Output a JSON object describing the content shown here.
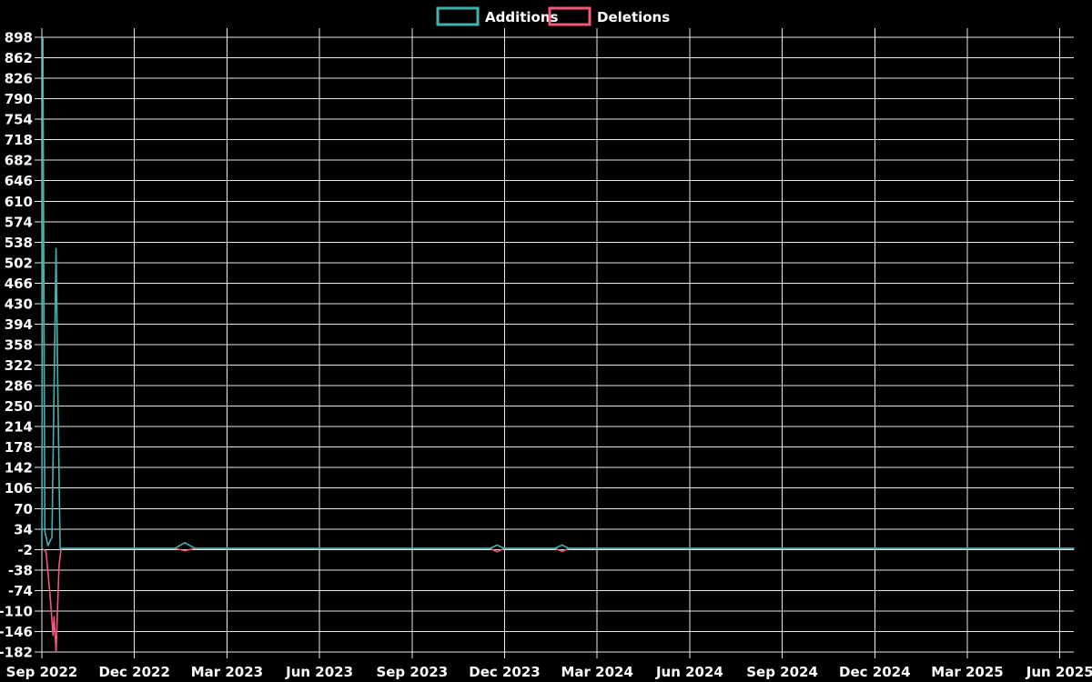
{
  "page": {
    "background_color": "#000000",
    "text_color": "#ffffff",
    "grid_color": "#e9e9e9"
  },
  "legend": {
    "additions_label": "Additions",
    "deletions_label": "Deletions"
  },
  "chart_data": {
    "type": "line",
    "title": "",
    "xlabel": "",
    "ylabel": "",
    "grid": true,
    "legend_position": "top-center",
    "background_color": "#000000",
    "grid_color": "#e9e9e9",
    "text_color": "#ffffff",
    "y_min": -182,
    "y_max": 898,
    "y_step": 36,
    "y_ticks": [
      898,
      862,
      826,
      790,
      754,
      718,
      682,
      646,
      610,
      574,
      538,
      502,
      466,
      430,
      394,
      358,
      322,
      286,
      250,
      214,
      178,
      142,
      106,
      70,
      34,
      -2,
      -38,
      -74,
      -110,
      -146,
      -182
    ],
    "x_tick_labels": [
      "Sep 2022",
      "Dec 2022",
      "Mar 2023",
      "Jun 2023",
      "Sep 2023",
      "Dec 2023",
      "Mar 2024",
      "Jun 2024",
      "Sep 2024",
      "Dec 2024",
      "Mar 2025",
      "Jun 2025"
    ],
    "x_start_date": "2022-09-01",
    "x_end_date": "2025-06-01",
    "series": [
      {
        "name": "Additions",
        "color": "#41b3af",
        "points": [
          [
            "2022-09-01",
            0
          ],
          [
            "2022-09-02",
            898
          ],
          [
            "2022-09-04",
            30
          ],
          [
            "2022-09-07",
            5
          ],
          [
            "2022-09-11",
            20
          ],
          [
            "2022-09-15",
            527
          ],
          [
            "2022-09-17",
            250
          ],
          [
            "2022-09-19",
            0
          ],
          [
            "2023-01-10",
            0
          ],
          [
            "2023-01-20",
            10
          ],
          [
            "2023-01-30",
            0
          ],
          [
            "2023-11-17",
            0
          ],
          [
            "2023-11-24",
            6
          ],
          [
            "2023-12-01",
            0
          ],
          [
            "2024-01-20",
            0
          ],
          [
            "2024-01-27",
            6
          ],
          [
            "2024-02-03",
            0
          ],
          [
            "2025-07-15",
            0
          ]
        ]
      },
      {
        "name": "Deletions",
        "color": "#f2587a",
        "points": [
          [
            "2022-09-01",
            0
          ],
          [
            "2022-09-05",
            -5
          ],
          [
            "2022-09-09",
            -80
          ],
          [
            "2022-09-12",
            -153
          ],
          [
            "2022-09-13",
            -120
          ],
          [
            "2022-09-15",
            -182
          ],
          [
            "2022-09-18",
            -30
          ],
          [
            "2022-09-20",
            0
          ],
          [
            "2023-01-10",
            0
          ],
          [
            "2023-01-20",
            -4
          ],
          [
            "2023-01-30",
            0
          ],
          [
            "2023-11-17",
            0
          ],
          [
            "2023-11-24",
            -6
          ],
          [
            "2023-12-01",
            0
          ],
          [
            "2024-01-20",
            0
          ],
          [
            "2024-01-27",
            -5
          ],
          [
            "2024-02-03",
            0
          ],
          [
            "2025-07-15",
            0
          ]
        ]
      }
    ]
  }
}
